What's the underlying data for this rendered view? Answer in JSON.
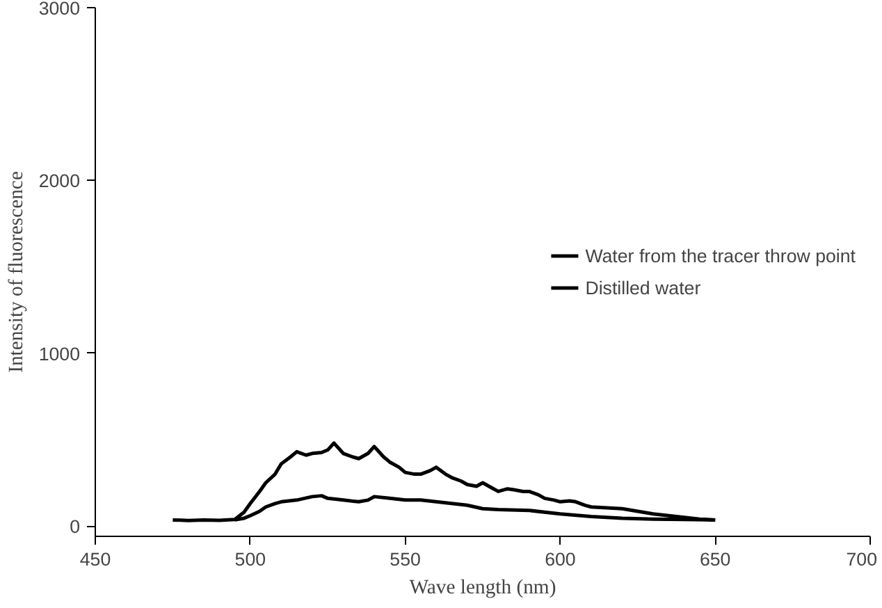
{
  "chart_data": {
    "type": "line",
    "xlabel": "Wave length (nm)",
    "ylabel": "Intensity of fluorescence",
    "xlim": [
      450,
      700
    ],
    "ylim": [
      -60,
      3000
    ],
    "xticks": [
      450,
      500,
      550,
      600,
      650,
      700
    ],
    "yticks": [
      0,
      1000,
      2000,
      3000
    ],
    "grid": false,
    "legend": "right",
    "marker": "none",
    "line_style": "solid",
    "series": [
      {
        "name": "Water from the tracer throw point",
        "color": "#000000",
        "x": [
          475,
          480,
          485,
          490,
          495,
          498,
          500,
          503,
          505,
          508,
          510,
          513,
          515,
          518,
          520,
          523,
          525,
          527,
          530,
          533,
          535,
          538,
          540,
          543,
          545,
          548,
          550,
          553,
          555,
          558,
          560,
          563,
          565,
          568,
          570,
          573,
          575,
          578,
          580,
          583,
          585,
          588,
          590,
          593,
          595,
          598,
          600,
          603,
          605,
          608,
          610,
          615,
          620,
          625,
          630,
          635,
          640,
          645,
          650
        ],
        "values": [
          35,
          32,
          35,
          33,
          38,
          80,
          130,
          200,
          250,
          300,
          360,
          400,
          430,
          410,
          420,
          425,
          440,
          480,
          420,
          400,
          390,
          420,
          460,
          400,
          370,
          340,
          310,
          300,
          300,
          320,
          340,
          300,
          280,
          260,
          240,
          230,
          250,
          220,
          200,
          215,
          210,
          200,
          200,
          180,
          160,
          150,
          140,
          145,
          140,
          120,
          110,
          105,
          100,
          85,
          70,
          60,
          50,
          40,
          35
        ]
      },
      {
        "name": "Distilled water",
        "color": "#000000",
        "x": [
          495,
          498,
          500,
          503,
          505,
          508,
          510,
          515,
          520,
          523,
          525,
          530,
          535,
          538,
          540,
          545,
          550,
          555,
          560,
          565,
          570,
          575,
          580,
          590,
          600,
          610,
          620,
          630,
          640,
          650
        ],
        "values": [
          35,
          45,
          60,
          85,
          110,
          130,
          140,
          150,
          170,
          175,
          160,
          150,
          140,
          150,
          170,
          160,
          150,
          150,
          140,
          130,
          120,
          100,
          95,
          90,
          70,
          55,
          45,
          40,
          38,
          35
        ]
      }
    ]
  }
}
